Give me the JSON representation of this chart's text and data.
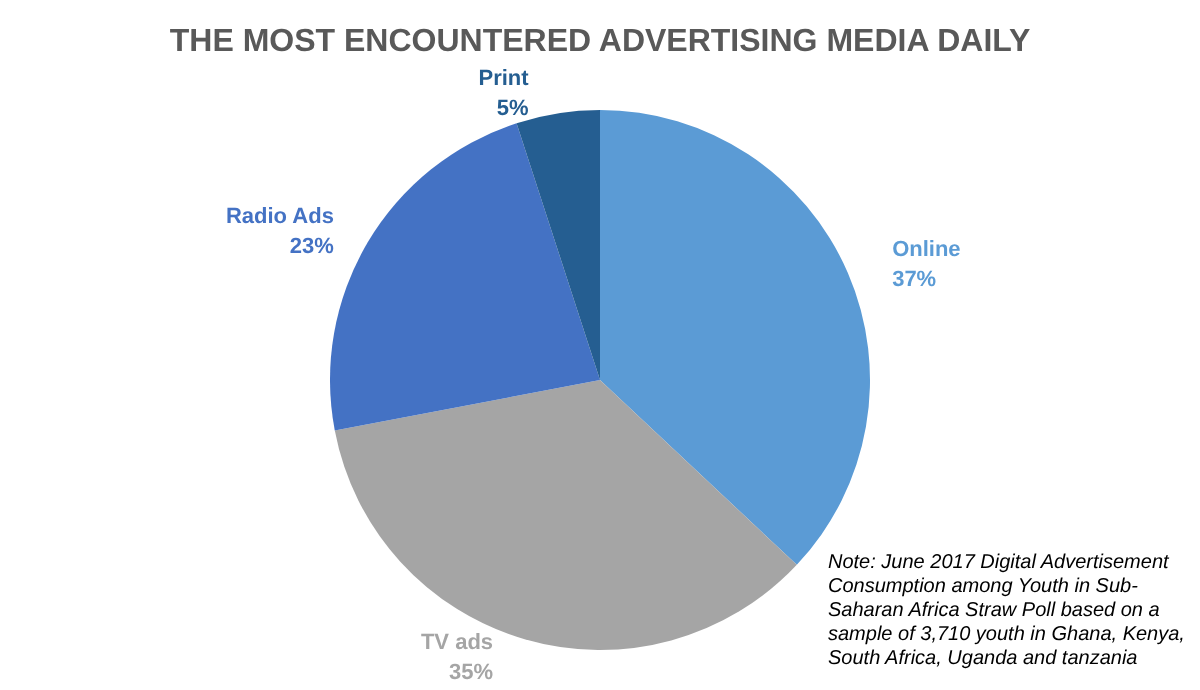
{
  "chart_data": {
    "type": "pie",
    "title": "THE MOST ENCOUNTERED ADVERTISING MEDIA DAILY",
    "categories": [
      "Online",
      "TV ads",
      "Radio Ads",
      "Print"
    ],
    "values": [
      37,
      35,
      23,
      5
    ],
    "value_labels": [
      "37%",
      "35%",
      "23%",
      "5%"
    ],
    "colors": [
      "#5b9bd5",
      "#a5a5a5",
      "#4472c4",
      "#255e91"
    ],
    "annotations": [
      "Note:  June 2017 Digital Advertisement Consumption among Youth in Sub-Saharan Africa Straw Poll based on a sample of 3,710 youth in Ghana, Kenya, South Africa, Uganda and tanzania"
    ],
    "legend": false
  }
}
